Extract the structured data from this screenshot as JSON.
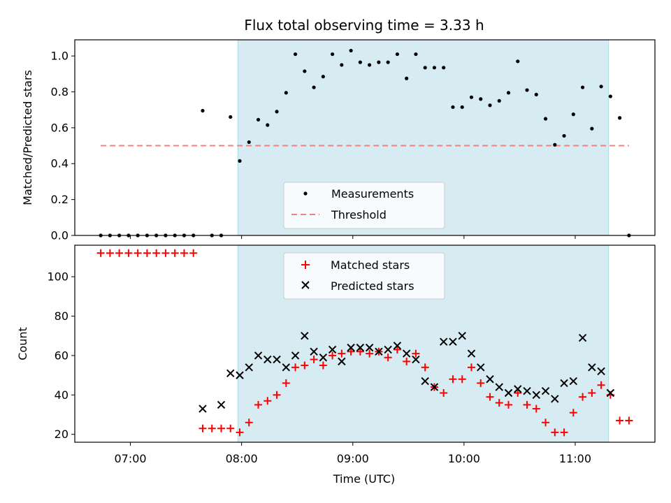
{
  "chart_data": [
    {
      "type": "scatter",
      "title": "Flux total observing time = 3.33 h",
      "ylabel": "Matched/Predicted stars",
      "xlabel": "",
      "xlim": [
        "06:30",
        "11:43"
      ],
      "ylim": [
        0,
        1.09
      ],
      "yticks": [
        "0.0",
        "0.2",
        "0.4",
        "0.6",
        "0.8",
        "1.0"
      ],
      "shaded_region": {
        "start": "07:58",
        "end": "11:18",
        "color": "#add8e6"
      },
      "grid": false,
      "legend_placement": "lower-center",
      "series": [
        {
          "name": "Measurements",
          "marker": "dot",
          "color": "#000000",
          "x": [
            "06:44",
            "06:49",
            "06:54",
            "06:59",
            "07:04",
            "07:09",
            "07:14",
            "07:19",
            "07:24",
            "07:29",
            "07:34",
            "07:39",
            "07:44",
            "07:49",
            "07:54",
            "07:59",
            "08:04",
            "08:09",
            "08:14",
            "08:19",
            "08:24",
            "08:29",
            "08:34",
            "08:39",
            "08:44",
            "08:49",
            "08:54",
            "08:59",
            "09:04",
            "09:09",
            "09:14",
            "09:19",
            "09:24",
            "09:29",
            "09:34",
            "09:39",
            "09:44",
            "09:49",
            "09:54",
            "09:59",
            "10:04",
            "10:09",
            "10:14",
            "10:19",
            "10:24",
            "10:29",
            "10:34",
            "10:39",
            "10:44",
            "10:49",
            "10:54",
            "10:59",
            "11:04",
            "11:09",
            "11:14",
            "11:19",
            "11:24",
            "11:29"
          ],
          "y": [
            0.0,
            0.0,
            0.0,
            0.0,
            0.0,
            0.0,
            0.0,
            0.0,
            0.0,
            0.0,
            0.0,
            0.695,
            0.0,
            0.0,
            0.66,
            0.415,
            0.52,
            0.645,
            0.615,
            0.69,
            0.795,
            1.01,
            0.915,
            0.825,
            0.885,
            1.01,
            0.95,
            1.03,
            0.965,
            0.95,
            0.965,
            0.965,
            1.01,
            0.875,
            1.01,
            0.935,
            0.935,
            0.935,
            0.715,
            0.715,
            0.77,
            0.76,
            0.725,
            0.75,
            0.795,
            0.97,
            0.81,
            0.785,
            0.65,
            0.505,
            0.555,
            0.675,
            0.825,
            0.595,
            0.83,
            0.775,
            0.655,
            0.0
          ]
        },
        {
          "name": "Threshold",
          "marker": "dashed-line",
          "color": "#f08080",
          "x": [
            "06:44",
            "11:29"
          ],
          "y": [
            0.5,
            0.5
          ]
        }
      ]
    },
    {
      "type": "scatter",
      "title": "",
      "ylabel": "Count",
      "xlabel": "Time (UTC)",
      "xlim": [
        "06:30",
        "11:43"
      ],
      "ylim": [
        16,
        116
      ],
      "xticks": [
        "07:00",
        "08:00",
        "09:00",
        "10:00",
        "11:00"
      ],
      "yticks": [
        "20",
        "40",
        "60",
        "80",
        "100"
      ],
      "shaded_region": {
        "start": "07:58",
        "end": "11:18",
        "color": "#add8e6"
      },
      "grid": false,
      "legend_placement": "upper-center",
      "series": [
        {
          "name": "Matched stars",
          "marker": "plus",
          "color": "#ff0000",
          "x": [
            "06:44",
            "06:49",
            "06:54",
            "06:59",
            "07:04",
            "07:09",
            "07:14",
            "07:19",
            "07:24",
            "07:29",
            "07:34",
            "07:39",
            "07:44",
            "07:49",
            "07:54",
            "07:59",
            "08:04",
            "08:09",
            "08:14",
            "08:19",
            "08:24",
            "08:29",
            "08:34",
            "08:39",
            "08:44",
            "08:49",
            "08:54",
            "08:59",
            "09:04",
            "09:09",
            "09:14",
            "09:19",
            "09:24",
            "09:29",
            "09:34",
            "09:39",
            "09:44",
            "09:49",
            "09:54",
            "09:59",
            "10:04",
            "10:09",
            "10:14",
            "10:19",
            "10:24",
            "10:29",
            "10:34",
            "10:39",
            "10:44",
            "10:49",
            "10:54",
            "10:59",
            "11:04",
            "11:09",
            "11:14",
            "11:19",
            "11:24",
            "11:29"
          ],
          "y": [
            112,
            112,
            112,
            112,
            112,
            112,
            112,
            112,
            112,
            112,
            112,
            23,
            23,
            23,
            23,
            21,
            26,
            35,
            37,
            40,
            46,
            54,
            55,
            58,
            55,
            60,
            61,
            62,
            62,
            61,
            62,
            59,
            63,
            57,
            61,
            54,
            44,
            41,
            48,
            48,
            54,
            46,
            39,
            36,
            35,
            41,
            35,
            33,
            26,
            21,
            21,
            31,
            39,
            41,
            45,
            40,
            27,
            27
          ]
        },
        {
          "name": "Predicted stars",
          "marker": "x",
          "color": "#000000",
          "x": [
            "07:39",
            "07:49",
            "07:54",
            "07:59",
            "08:04",
            "08:09",
            "08:14",
            "08:19",
            "08:24",
            "08:29",
            "08:34",
            "08:39",
            "08:44",
            "08:49",
            "08:54",
            "08:59",
            "09:04",
            "09:09",
            "09:14",
            "09:19",
            "09:24",
            "09:29",
            "09:34",
            "09:39",
            "09:44",
            "09:49",
            "09:54",
            "09:59",
            "10:04",
            "10:09",
            "10:14",
            "10:19",
            "10:24",
            "10:29",
            "10:34",
            "10:39",
            "10:44",
            "10:49",
            "10:54",
            "10:59",
            "11:04",
            "11:09",
            "11:14",
            "11:19"
          ],
          "y": [
            33,
            35,
            51,
            50,
            54,
            60,
            58,
            58,
            54,
            60,
            70,
            62,
            59,
            63,
            57,
            64,
            64,
            64,
            62,
            63,
            65,
            61,
            58,
            47,
            44,
            67,
            67,
            70,
            61,
            54,
            48,
            44,
            41,
            43,
            42,
            40,
            42,
            38,
            46,
            47,
            69,
            54,
            52,
            41
          ]
        }
      ]
    }
  ]
}
